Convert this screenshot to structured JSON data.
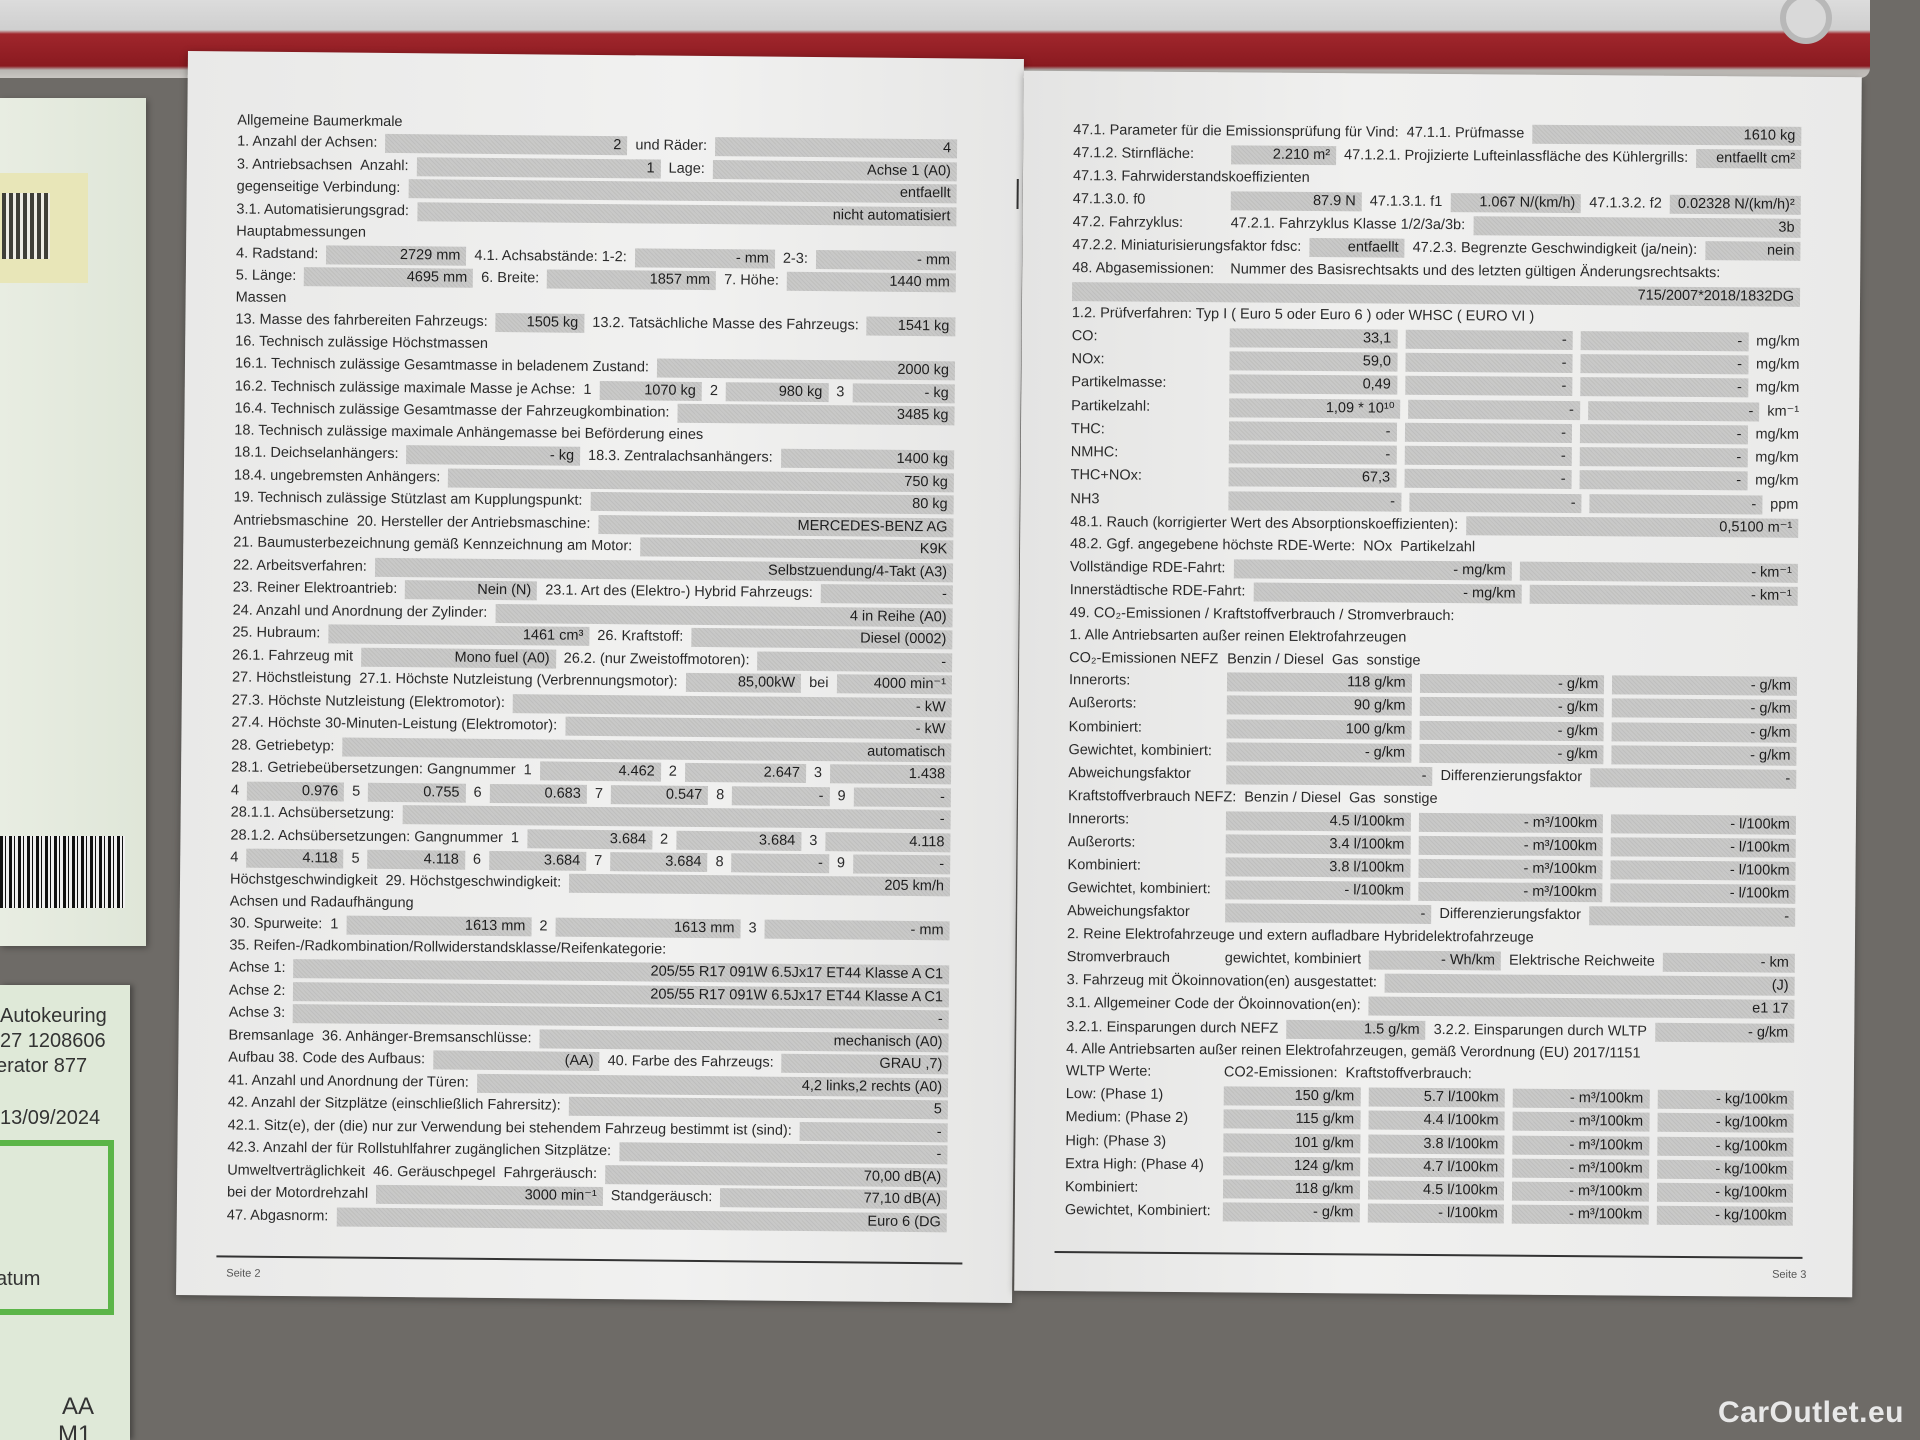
{
  "watermark": "CarOutlet.eu",
  "side_document": {
    "lines": [
      "Autokeuring",
      "27 1208606",
      "erator  877",
      "13/09/2024",
      "atum",
      "AA",
      "M1"
    ],
    "accent_color": "#5bb548"
  },
  "left_page": {
    "footer": "Seite 2",
    "rows": [
      [
        "Allgemeine Baumerkmale"
      ],
      [
        "1. Anzahl der Achsen:",
        {
          "v": "2"
        },
        "und Räder:",
        {
          "v": "4"
        }
      ],
      [
        "3. Antriebsachsen",
        "Anzahl:",
        {
          "v": "1"
        },
        "Lage:",
        {
          "v": "Achse 1 (A0)"
        }
      ],
      [
        "gegenseitige Verbindung:",
        {
          "v": "entfaellt"
        }
      ],
      [
        "3.1. Automatisierungsgrad:",
        {
          "v": "nicht automatisiert"
        }
      ],
      [
        "Hauptabmessungen"
      ],
      [
        "4. Radstand:",
        {
          "v": "2729   mm"
        },
        "4.1. Achsabstände: 1-2:",
        {
          "v": "-   mm"
        },
        "2-3:",
        {
          "v": "-   mm"
        }
      ],
      [
        "5. Länge:",
        {
          "v": "4695   mm"
        },
        "6. Breite:",
        {
          "v": "1857   mm"
        },
        "7. Höhe:",
        {
          "v": "1440   mm"
        }
      ],
      [
        "Massen"
      ],
      [
        "13. Masse des fahrbereiten Fahrzeugs:",
        {
          "v": "1505   kg"
        },
        "13.2. Tatsächliche Masse des Fahrzeugs:",
        {
          "v": "1541   kg"
        }
      ],
      [
        "16. Technisch zulässige Höchstmassen"
      ],
      [
        "16.1. Technisch zulässige Gesamtmasse in beladenem Zustand:",
        {
          "v": "2000   kg"
        }
      ],
      [
        "16.2. Technisch zulässige maximale Masse je Achse:",
        "1",
        {
          "v": "1070   kg"
        },
        "2",
        {
          "v": "980   kg"
        },
        "3",
        {
          "v": "-   kg"
        }
      ],
      [
        "16.4. Technisch zulässige Gesamtmasse der Fahrzeugkombination:",
        {
          "v": "3485   kg"
        }
      ],
      [
        "18. Technisch zulässige maximale Anhängemasse bei Beförderung eines"
      ],
      [
        "18.1. Deichselanhängers:",
        {
          "v": "-   kg"
        },
        "18.3. Zentralachsanhängers:",
        {
          "v": "1400   kg"
        }
      ],
      [
        "18.4. ungebremsten Anhängers:",
        {
          "v": "750   kg"
        }
      ],
      [
        "19. Technisch zulässige Stützlast am Kupplungspunkt:",
        {
          "v": "80   kg"
        }
      ],
      [
        "Antriebsmaschine",
        "20. Hersteller der Antriebsmaschine:",
        {
          "v": "MERCEDES-BENZ AG"
        }
      ],
      [
        "21. Baumusterbezeichnung gemäß Kennzeichnung am Motor:",
        {
          "v": "K9K"
        }
      ],
      [
        "22. Arbeitsverfahren:",
        {
          "v": "Selbstzuendung/4-Takt (A3)"
        }
      ],
      [
        "23. Reiner Elektroantrieb:",
        {
          "v": "Nein (N)"
        },
        "23.1. Art des (Elektro-) Hybrid Fahrzeugs:",
        {
          "v": "-"
        }
      ],
      [
        "24. Anzahl und Anordnung der Zylinder:",
        {
          "v": "4 in Reihe (A0)"
        }
      ],
      [
        "25. Hubraum:",
        {
          "v": "1461   cm³"
        },
        "26. Kraftstoff:",
        {
          "v": "Diesel (0002)"
        }
      ],
      [
        "26.1. Fahrzeug mit",
        {
          "v": "Mono fuel (A0)"
        },
        "26.2. (nur Zweistoffmotoren):",
        {
          "v": "-"
        }
      ],
      [
        "27. Höchstleistung",
        "27.1. Höchste Nutzleistung (Verbrennungsmotor):",
        {
          "v": "85,00kW"
        },
        "bei",
        {
          "v": "4000 min⁻¹"
        }
      ],
      [
        "27.3. Höchste Nutzleistung (Elektromotor):",
        {
          "v": "-   kW"
        }
      ],
      [
        "27.4. Höchste 30-Minuten-Leistung (Elektromotor):",
        {
          "v": "-   kW"
        }
      ],
      [
        "28. Getriebetyp:",
        {
          "v": "automatisch"
        }
      ],
      [
        "28.1. Getriebeübersetzungen: Gangnummer",
        "1",
        {
          "v": "4.462"
        },
        "2",
        {
          "v": "2.647"
        },
        "3",
        {
          "v": "1.438"
        }
      ],
      [
        "4",
        {
          "v": "0.976"
        },
        "5",
        {
          "v": "0.755"
        },
        "6",
        {
          "v": "0.683"
        },
        "7",
        {
          "v": "0.547"
        },
        "8",
        {
          "v": "-"
        },
        "9",
        {
          "v": "-"
        }
      ],
      [
        "28.1.1. Achsübersetzung:",
        {
          "v": "-"
        }
      ],
      [
        "28.1.2. Achsübersetzungen: Gangnummer",
        "1",
        {
          "v": "3.684"
        },
        "2",
        {
          "v": "3.684"
        },
        "3",
        {
          "v": "4.118"
        }
      ],
      [
        "4",
        {
          "v": "4.118"
        },
        "5",
        {
          "v": "4.118"
        },
        "6",
        {
          "v": "3.684"
        },
        "7",
        {
          "v": "3.684"
        },
        "8",
        {
          "v": "-"
        },
        "9",
        {
          "v": "-"
        }
      ],
      [
        "Höchstgeschwindigkeit",
        "29. Höchstgeschwindigkeit:",
        {
          "v": "205   km/h"
        }
      ],
      [
        "Achsen und Radaufhängung"
      ],
      [
        "30. Spurweite:",
        "1",
        {
          "v": "1613   mm"
        },
        "2",
        {
          "v": "1613   mm"
        },
        "3",
        {
          "v": "-   mm"
        }
      ],
      [
        "35. Reifen-/Radkombination/Rollwiderstandsklasse/Reifenkategorie:"
      ],
      [
        "Achse 1:",
        {
          "v": "205/55 R17 091W     6.5Jx17 ET44     Klasse A     C1"
        }
      ],
      [
        "Achse 2:",
        {
          "v": "205/55 R17 091W     6.5Jx17 ET44     Klasse A     C1"
        }
      ],
      [
        "Achse 3:",
        {
          "v": "-"
        }
      ],
      [
        "Bremsanlage",
        "36. Anhänger-Bremsanschlüsse:",
        {
          "v": "mechanisch (A0)"
        }
      ],
      [
        "Aufbau  38. Code des Aufbaus:",
        {
          "v": "(AA)"
        },
        "40. Farbe des Fahrzeugs:",
        {
          "v": "GRAU ,7)"
        }
      ],
      [
        "41. Anzahl und Anordnung der Türen:",
        {
          "v": "4,2 links,2 rechts (A0)"
        }
      ],
      [
        "42. Anzahl der Sitzplätze (einschließlich Fahrersitz):",
        {
          "v": "5"
        }
      ],
      [
        "42.1. Sitz(e), der (die) nur zur Verwendung bei stehendem Fahrzeug bestimmt ist (sind):",
        {
          "v": "-"
        }
      ],
      [
        "42.3. Anzahl der für Rollstuhlfahrer zugänglichen Sitzplätze:",
        {
          "v": "-"
        }
      ],
      [
        "Umweltverträglichkeit",
        "46. Geräuschpegel",
        "Fahrgeräusch:",
        {
          "v": "70,00   dB(A)"
        }
      ],
      [
        "bei der Motordrehzahl",
        {
          "v": "3000   min⁻¹"
        },
        "Standgeräusch:",
        {
          "v": "77,10   dB(A)"
        }
      ],
      [
        "47. Abgasnorm:",
        {
          "v": "Euro 6 (DG"
        }
      ]
    ]
  },
  "right_page": {
    "footer": "Seite 3",
    "rows": [
      [
        "47.1. Parameter für die Emissionsprüfung für Vind:",
        "47.1.1. Prüfmasse",
        {
          "v": "1610   kg"
        }
      ],
      [
        "47.1.2. Stirnfläche:",
        {
          "v": "2.210  m²"
        },
        "47.1.2.1. Projizierte Lufteinlassfläche des Kühlergrills:",
        {
          "v": "entfaellt  cm²"
        }
      ],
      [
        "47.1.3. Fahrwiderstandskoeffizienten"
      ],
      [
        "47.1.3.0. f0",
        {
          "v": "87.9   N"
        },
        "47.1.3.1. f1",
        {
          "v": "1.067  N/(km/h)"
        },
        "47.1.3.2. f2",
        {
          "v": "0.02328  N/(km/h)²"
        }
      ],
      [
        "47.2. Fahrzyklus:",
        "47.2.1. Fahrzyklus Klasse 1/2/3a/3b:",
        {
          "v": "3b"
        }
      ],
      [
        "47.2.2. Miniaturisierungsfaktor fdsc:",
        {
          "v": "entfaellt"
        },
        "47.2.3. Begrenzte Geschwindigkeit (ja/nein):",
        {
          "v": "nein"
        }
      ],
      [
        "48. Abgasemissionen:",
        "Nummer des Basisrechtsakts und des letzten gültigen Änderungsrechtsakts:"
      ],
      [
        {
          "v": "715/2007*2018/1832DG"
        }
      ],
      [
        "1.2. Prüfverfahren: Typ I ( Euro 5 oder Euro 6 ) oder WHSC ( EURO VI )"
      ],
      [
        "CO:",
        {
          "v": "33,1"
        },
        {
          "v": "-"
        },
        {
          "v": "-"
        },
        "mg/km"
      ],
      [
        "NOx:",
        {
          "v": "59,0"
        },
        {
          "v": "-"
        },
        {
          "v": "-"
        },
        "mg/km"
      ],
      [
        "Partikelmasse:",
        {
          "v": "0,49"
        },
        {
          "v": "-"
        },
        {
          "v": "-"
        },
        "mg/km"
      ],
      [
        "Partikelzahl:",
        {
          "v": "1,09 * 10¹⁰"
        },
        {
          "v": "-"
        },
        {
          "v": "-"
        },
        "km⁻¹"
      ],
      [
        "THC:",
        {
          "v": "-"
        },
        {
          "v": "-"
        },
        {
          "v": "-"
        },
        "mg/km"
      ],
      [
        "NMHC:",
        {
          "v": "-"
        },
        {
          "v": "-"
        },
        {
          "v": "-"
        },
        "mg/km"
      ],
      [
        "THC+NOx:",
        {
          "v": "67,3"
        },
        {
          "v": "-"
        },
        {
          "v": "-"
        },
        "mg/km"
      ],
      [
        "NH3",
        {
          "v": "-"
        },
        {
          "v": "-"
        },
        {
          "v": "-"
        },
        "ppm"
      ],
      [
        "48.1. Rauch (korrigierter Wert des Absorptionskoeffizienten):",
        {
          "v": "0,5100   m⁻¹"
        }
      ],
      [
        "48.2. Ggf. angegebene höchste RDE-Werte:",
        "NOx",
        "Partikelzahl"
      ],
      [
        "Vollständige RDE-Fahrt:",
        {
          "v": "-  mg/km"
        },
        {
          "v": "-  km⁻¹"
        }
      ],
      [
        "Innerstädtische RDE-Fahrt:",
        {
          "v": "-  mg/km"
        },
        {
          "v": "-  km⁻¹"
        }
      ],
      [
        "49. CO₂-Emissionen / Kraftstoffverbrauch / Stromverbrauch:"
      ],
      [
        "1. Alle Antriebsarten außer reinen Elektrofahrzeugen"
      ],
      [
        "CO₂-Emissionen NEFZ",
        "Benzin / Diesel",
        "Gas",
        "sonstige"
      ],
      [
        "Innerorts:",
        {
          "v": "118   g/km"
        },
        {
          "v": "-   g/km"
        },
        {
          "v": "-   g/km"
        }
      ],
      [
        "Außerorts:",
        {
          "v": "90   g/km"
        },
        {
          "v": "-   g/km"
        },
        {
          "v": "-   g/km"
        }
      ],
      [
        "Kombiniert:",
        {
          "v": "100   g/km"
        },
        {
          "v": "-   g/km"
        },
        {
          "v": "-   g/km"
        }
      ],
      [
        "Gewichtet, kombiniert:",
        {
          "v": "-   g/km"
        },
        {
          "v": "-   g/km"
        },
        {
          "v": "-   g/km"
        }
      ],
      [
        "Abweichungsfaktor",
        {
          "v": "-"
        },
        "Differenzierungsfaktor",
        {
          "v": "-"
        }
      ],
      [
        "Kraftstoffverbrauch NEFZ:",
        "Benzin / Diesel",
        "Gas",
        "sonstige"
      ],
      [
        "Innerorts:",
        {
          "v": "4.5   l/100km"
        },
        {
          "v": "-   m³/100km"
        },
        {
          "v": "-   l/100km"
        }
      ],
      [
        "Außerorts:",
        {
          "v": "3.4   l/100km"
        },
        {
          "v": "-   m³/100km"
        },
        {
          "v": "-   l/100km"
        }
      ],
      [
        "Kombiniert:",
        {
          "v": "3.8   l/100km"
        },
        {
          "v": "-   m³/100km"
        },
        {
          "v": "-   l/100km"
        }
      ],
      [
        "Gewichtet, kombiniert:",
        {
          "v": "-   l/100km"
        },
        {
          "v": "-   m³/100km"
        },
        {
          "v": "-   l/100km"
        }
      ],
      [
        "Abweichungsfaktor",
        {
          "v": "-"
        },
        "Differenzierungsfaktor",
        {
          "v": "-"
        }
      ],
      [
        "2. Reine Elektrofahrzeuge und extern aufladbare Hybridelektrofahrzeuge"
      ],
      [
        "Stromverbrauch",
        "gewichtet, kombiniert",
        {
          "v": "-  Wh/km"
        },
        "Elektrische Reichweite",
        {
          "v": "-  km"
        }
      ],
      [
        "3. Fahrzeug mit Ökoinnovation(en) ausgestattet:",
        {
          "v": "(J)"
        }
      ],
      [
        "3.1. Allgemeiner Code der Ökoinnovation(en):",
        {
          "v": "e1 17"
        }
      ],
      [
        "3.2.1. Einsparungen durch NEFZ",
        {
          "v": "1.5   g/km"
        },
        "3.2.2. Einsparungen durch WLTP",
        {
          "v": "-   g/km"
        }
      ],
      [
        "4. Alle Antriebsarten außer reinen Elektrofahrzeugen, gemäß Verordnung (EU) 2017/1151"
      ],
      [
        "WLTP Werte:",
        "CO2-Emissionen:",
        "Kraftstoffverbrauch:"
      ],
      [
        "Low: (Phase 1)",
        {
          "v": "150   g/km"
        },
        {
          "v": "5.7   l/100km"
        },
        {
          "v": "-   m³/100km"
        },
        {
          "v": "-   kg/100km"
        }
      ],
      [
        "Medium: (Phase 2)",
        {
          "v": "115   g/km"
        },
        {
          "v": "4.4   l/100km"
        },
        {
          "v": "-   m³/100km"
        },
        {
          "v": "-   kg/100km"
        }
      ],
      [
        "High: (Phase 3)",
        {
          "v": "101   g/km"
        },
        {
          "v": "3.8   l/100km"
        },
        {
          "v": "-   m³/100km"
        },
        {
          "v": "-   kg/100km"
        }
      ],
      [
        "Extra High: (Phase 4)",
        {
          "v": "124   g/km"
        },
        {
          "v": "4.7   l/100km"
        },
        {
          "v": "-   m³/100km"
        },
        {
          "v": "-   kg/100km"
        }
      ],
      [
        "Kombiniert:",
        {
          "v": "118   g/km"
        },
        {
          "v": "4.5   l/100km"
        },
        {
          "v": "-   m³/100km"
        },
        {
          "v": "-   kg/100km"
        }
      ],
      [
        "Gewichtet, Kombiniert:",
        {
          "v": "-   g/km"
        },
        {
          "v": "-   l/100km"
        },
        {
          "v": "-   m³/100km"
        },
        {
          "v": "-   kg/100km"
        }
      ]
    ]
  }
}
